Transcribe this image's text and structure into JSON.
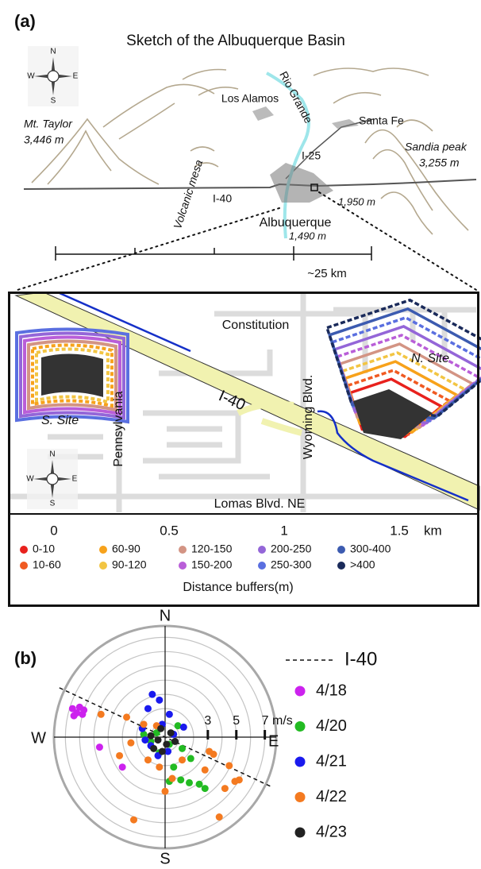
{
  "panel_a": {
    "label": "(a)",
    "title": "Sketch of the Albuquerque Basin",
    "compass": {
      "n": "N",
      "e": "E",
      "s": "S",
      "w": "W"
    },
    "places": {
      "los_alamos": "Los Alamos",
      "rio_grande": "Rio Grande",
      "santa_fe": "Santa Fe",
      "mt_taylor": "Mt. Taylor",
      "mt_taylor_elev": "3,446 m",
      "sandia": "Sandia peak",
      "sandia_elev": "3,255 m",
      "i25": "I-25",
      "i40": "I-40",
      "volcanic_mesa": "Volcanic mesa",
      "albuquerque": "Albuquerque",
      "abq_elev": "1,490 m",
      "east_elev": "1,950 m"
    },
    "scale_label": "~25 km"
  },
  "map": {
    "streets": {
      "constitution": "Constitution",
      "pennsylvania": "Pennsylvania",
      "i40": "I-40",
      "wyoming": "Wyoming Blvd.",
      "lomas": "Lomas Blvd. NE"
    },
    "sites": {
      "north": "N. Site",
      "south": "S. Site"
    },
    "compass": {
      "n": "N",
      "e": "E",
      "s": "S",
      "w": "W"
    },
    "xlim": [
      -0.2,
      1.848
    ],
    "xticks": [
      0,
      0.5,
      1,
      1.5
    ],
    "x_unit": "km",
    "legend": {
      "title": "Distance buffers(m)",
      "items": [
        {
          "label": "0-10",
          "color": "#e8211d"
        },
        {
          "label": "10-60",
          "color": "#f05a22"
        },
        {
          "label": "60-90",
          "color": "#f7a21b"
        },
        {
          "label": "90-120",
          "color": "#f2c543"
        },
        {
          "label": "120-150",
          "color": "#d39484"
        },
        {
          "label": "150-200",
          "color": "#b95ed8"
        },
        {
          "label": "200-250",
          "color": "#9466d8"
        },
        {
          "label": "250-300",
          "color": "#5a6fe0"
        },
        {
          "label": "300-400",
          "color": "#3c5bb0"
        },
        {
          "label": ">400",
          "color": "#1a2a5a"
        }
      ]
    }
  },
  "chart_data": {
    "type": "polar-scatter",
    "label": "(b)",
    "directions": {
      "n": "N",
      "e": "E",
      "s": "S",
      "w": "W"
    },
    "rlim": [
      0,
      7.8
    ],
    "rgrid": [
      1,
      2,
      3,
      4,
      5,
      6,
      7
    ],
    "rticks": [
      3,
      5,
      {
        "value": 7,
        "label": "7 m/s"
      }
    ],
    "reference_line": {
      "name": "I-40",
      "angle": -25
    },
    "series": [
      {
        "name": "4/18",
        "color": "#cc22ee",
        "x": [
          -6.5,
          -6.2,
          -6.0,
          -5.8,
          -6.4,
          -5.7,
          -4.6,
          -3.0
        ],
        "y": [
          2.0,
          1.7,
          2.1,
          1.6,
          1.5,
          1.9,
          -0.7,
          -2.1
        ]
      },
      {
        "name": "4/20",
        "color": "#22bb22",
        "x": [
          -1.5,
          -1.0,
          0.3,
          -0.4,
          0.6,
          0.3,
          1.1,
          1.7,
          2.4,
          1.8,
          0.9,
          -0.6,
          1.2,
          2.8
        ],
        "y": [
          0.2,
          -0.3,
          -0.5,
          -1.1,
          -2.1,
          -3.1,
          -3.0,
          -3.2,
          -3.3,
          -1.5,
          0.8,
          0.3,
          -0.8,
          -3.6
        ]
      },
      {
        "name": "4/21",
        "color": "#1a1aee",
        "x": [
          -0.9,
          -0.4,
          -1.2,
          0.3,
          -0.2,
          -1.4,
          -1.0,
          0.6,
          1.3,
          -0.5,
          0.2,
          -1.6
        ],
        "y": [
          3.0,
          2.6,
          2.0,
          1.6,
          0.9,
          -0.2,
          -0.6,
          0.2,
          0.7,
          -1.3,
          -1.0,
          0.6
        ]
      },
      {
        "name": "4/22",
        "color": "#f47a20",
        "x": [
          -2.7,
          -4.5,
          -3.2,
          -2.4,
          -1.5,
          -1.2,
          -0.4,
          0.5,
          0.0,
          3.4,
          4.5,
          4.9,
          5.2,
          4.2,
          2.8,
          3.1,
          -2.2,
          3.8,
          1.2,
          -0.6
        ],
        "y": [
          1.4,
          1.6,
          -1.3,
          -0.4,
          0.9,
          -1.6,
          -2.1,
          -2.9,
          -3.8,
          -1.2,
          -2.0,
          -3.1,
          -3.0,
          -3.6,
          -2.3,
          -1.0,
          -5.8,
          -5.6,
          -1.6,
          0.8
        ]
      },
      {
        "name": "4/23",
        "color": "#222222",
        "x": [
          -0.5,
          0.1,
          -1.0,
          0.4,
          -0.3,
          -0.8,
          0.7,
          -0.2
        ],
        "y": [
          -0.2,
          -0.5,
          0.1,
          0.3,
          0.6,
          -0.8,
          -0.3,
          -1.0
        ]
      }
    ]
  }
}
